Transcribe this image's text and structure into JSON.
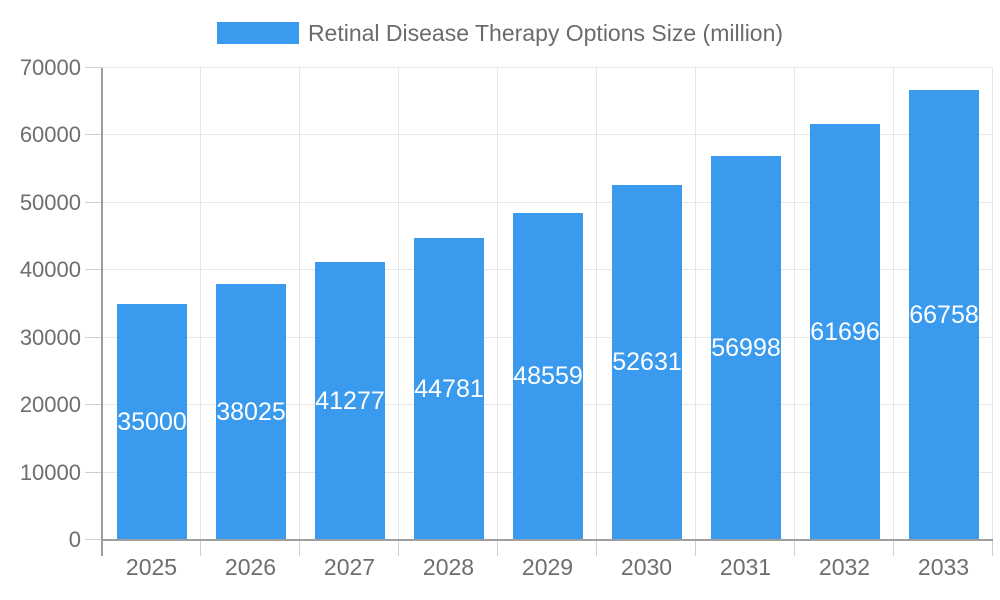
{
  "chart_data": {
    "type": "bar",
    "title": "Retinal Disease Therapy Options Size (million)",
    "series_name": "Retinal Disease Therapy Options Size (million)",
    "categories": [
      "2025",
      "2026",
      "2027",
      "2028",
      "2029",
      "2030",
      "2031",
      "2032",
      "2033"
    ],
    "values": [
      35000,
      38025,
      41277,
      44781,
      48559,
      52631,
      56998,
      61696,
      66758
    ],
    "xlabel": "",
    "ylabel": "",
    "ylim": [
      0,
      70000
    ],
    "ytick_step": 10000,
    "ytick_labels": [
      "0",
      "10000",
      "20000",
      "30000",
      "40000",
      "50000",
      "60000",
      "70000"
    ],
    "legend_position": "top",
    "grid": true,
    "bar_labels_inside": true,
    "colors": {
      "bar": "#3A9AED",
      "bar_label": "#FFFFFF",
      "axis_text": "#6E6E6E",
      "legend_text": "#6B6B6B",
      "gridline": "#E6E6E6",
      "axis_line": "#9E9E9E",
      "tick": "#CFCFCF",
      "background": "#FFFFFF"
    }
  }
}
